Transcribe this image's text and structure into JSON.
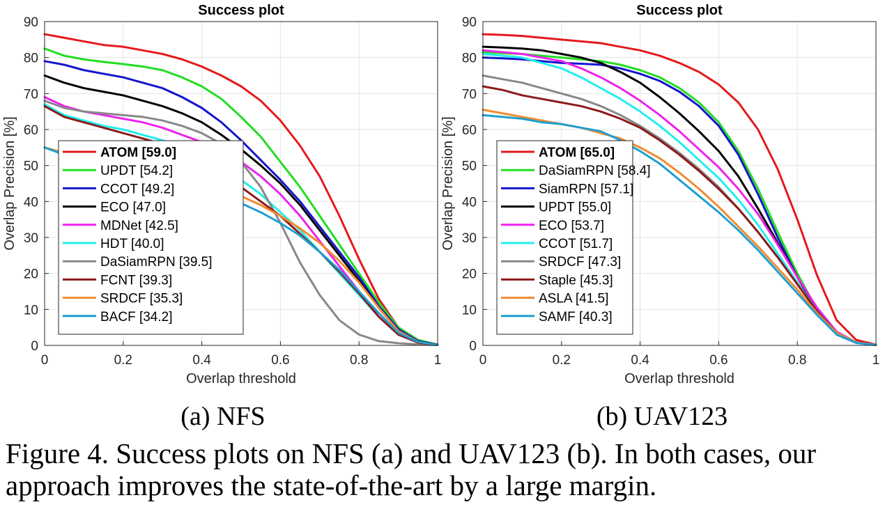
{
  "chart_data": [
    {
      "type": "line",
      "title": "Success plot",
      "xlabel": "Overlap threshold",
      "ylabel": "Overlap Precision [%]",
      "xlim": [
        0,
        1
      ],
      "ylim": [
        0,
        90
      ],
      "xticks": [
        0,
        0.2,
        0.4,
        0.6,
        0.8,
        1
      ],
      "xtick_labels": [
        "0",
        "0.2",
        "0.4",
        "0.6",
        "0.8",
        "1"
      ],
      "yticks": [
        0,
        10,
        20,
        30,
        40,
        50,
        60,
        70,
        80,
        90
      ],
      "grid": true,
      "legend_placement": "lower-left",
      "x": [
        0,
        0.05,
        0.1,
        0.15,
        0.2,
        0.25,
        0.3,
        0.35,
        0.4,
        0.45,
        0.5,
        0.55,
        0.6,
        0.65,
        0.7,
        0.75,
        0.8,
        0.85,
        0.9,
        0.95,
        1
      ],
      "series": [
        {
          "name": "ATOM [59.0]",
          "bold": true,
          "color": "#e41a1c",
          "values": [
            86.5,
            85.5,
            84.5,
            83.5,
            83.0,
            82.0,
            81.0,
            79.5,
            77.5,
            75.0,
            72.0,
            68.0,
            62.5,
            55.5,
            47.0,
            36.0,
            24.0,
            13.0,
            5.0,
            1.5,
            0.2
          ]
        },
        {
          "name": "UPDT [54.2]",
          "bold": false,
          "color": "#22dd22",
          "values": [
            82.5,
            80.5,
            79.5,
            78.8,
            78.2,
            77.5,
            76.5,
            74.5,
            72.0,
            68.5,
            63.5,
            58.0,
            51.0,
            44.0,
            36.0,
            28.0,
            20.0,
            12.0,
            5.0,
            1.5,
            0.2
          ]
        },
        {
          "name": "CCOT [49.2]",
          "bold": false,
          "color": "#1515cc",
          "values": [
            79.0,
            78.0,
            76.5,
            75.5,
            74.5,
            73.0,
            71.5,
            69.0,
            66.0,
            62.0,
            57.0,
            51.5,
            46.0,
            40.0,
            33.0,
            26.0,
            19.0,
            11.0,
            4.5,
            1.2,
            0.2
          ]
        },
        {
          "name": "ECO [47.0]",
          "bold": false,
          "color": "#000000",
          "values": [
            75.0,
            73.0,
            71.5,
            70.5,
            69.5,
            68.0,
            66.5,
            64.5,
            62.0,
            58.5,
            54.5,
            50.0,
            45.0,
            39.0,
            32.0,
            25.0,
            18.0,
            10.5,
            4.0,
            1.0,
            0.2
          ]
        },
        {
          "name": "MDNet [42.5]",
          "bold": false,
          "color": "#ee22ee",
          "values": [
            69.0,
            66.5,
            65.0,
            64.0,
            63.0,
            62.0,
            60.5,
            58.5,
            56.5,
            54.0,
            51.0,
            47.0,
            42.0,
            36.0,
            29.0,
            22.0,
            15.0,
            8.0,
            3.0,
            0.8,
            0.1
          ]
        },
        {
          "name": "HDT [40.0]",
          "bold": false,
          "color": "#22eeee",
          "values": [
            67.0,
            64.0,
            62.5,
            61.0,
            60.0,
            58.5,
            57.0,
            55.0,
            52.5,
            49.5,
            46.0,
            42.0,
            37.0,
            32.0,
            26.0,
            20.0,
            14.0,
            8.0,
            3.0,
            0.8,
            0.1
          ]
        },
        {
          "name": "DaSiamRPN [39.5]",
          "bold": false,
          "color": "#888888",
          "values": [
            68.0,
            66.0,
            65.0,
            64.5,
            64.0,
            63.5,
            62.5,
            61.0,
            59.0,
            56.0,
            51.0,
            44.0,
            34.0,
            23.0,
            14.0,
            7.0,
            3.0,
            1.2,
            0.6,
            0.3,
            0.1
          ]
        },
        {
          "name": "FCNT [39.3]",
          "bold": false,
          "color": "#8b1a1a",
          "values": [
            66.5,
            63.5,
            62.0,
            60.5,
            59.0,
            57.5,
            56.0,
            54.0,
            51.5,
            48.0,
            44.0,
            40.0,
            36.0,
            31.0,
            26.0,
            20.5,
            14.5,
            8.0,
            3.0,
            0.8,
            0.1
          ]
        },
        {
          "name": "SRDCF [35.3]",
          "bold": false,
          "color": "#f28a30",
          "values": [
            55.0,
            53.5,
            52.5,
            51.5,
            50.5,
            49.5,
            48.5,
            47.0,
            45.5,
            43.5,
            41.5,
            39.0,
            36.0,
            32.5,
            28.5,
            23.5,
            17.5,
            10.5,
            4.0,
            1.0,
            0.1
          ]
        },
        {
          "name": "BACF [34.2]",
          "bold": false,
          "color": "#1f9fd0",
          "values": [
            55.0,
            53.0,
            52.0,
            51.0,
            50.0,
            48.5,
            47.0,
            45.5,
            43.5,
            41.5,
            39.5,
            37.0,
            34.0,
            30.5,
            26.0,
            21.0,
            15.0,
            9.0,
            3.5,
            1.0,
            0.1
          ]
        }
      ]
    },
    {
      "type": "line",
      "title": "Success plot",
      "xlabel": "Overlap threshold",
      "ylabel": "Overlap Precision [%]",
      "xlim": [
        0,
        1
      ],
      "ylim": [
        0,
        90
      ],
      "xticks": [
        0,
        0.2,
        0.4,
        0.6,
        0.8,
        1
      ],
      "xtick_labels": [
        "0",
        "0.2",
        "0.4",
        "0.6",
        "0.8",
        "1"
      ],
      "yticks": [
        0,
        10,
        20,
        30,
        40,
        50,
        60,
        70,
        80,
        90
      ],
      "grid": true,
      "legend_placement": "lower-left",
      "x": [
        0,
        0.05,
        0.1,
        0.15,
        0.2,
        0.25,
        0.3,
        0.35,
        0.4,
        0.45,
        0.5,
        0.55,
        0.6,
        0.65,
        0.7,
        0.75,
        0.8,
        0.85,
        0.9,
        0.95,
        1
      ],
      "series": [
        {
          "name": "ATOM [65.0]",
          "bold": true,
          "color": "#e41a1c",
          "values": [
            86.5,
            86.3,
            86.0,
            85.5,
            85.0,
            84.5,
            84.0,
            83.0,
            82.0,
            80.5,
            78.5,
            76.0,
            72.5,
            67.5,
            60.0,
            49.0,
            35.0,
            19.5,
            7.0,
            1.5,
            0.2
          ]
        },
        {
          "name": "DaSiamRPN [58.4]",
          "bold": false,
          "color": "#22dd22",
          "values": [
            81.5,
            81.2,
            81.0,
            80.5,
            80.0,
            79.5,
            79.0,
            78.0,
            76.5,
            74.5,
            71.5,
            67.5,
            62.0,
            54.0,
            43.5,
            31.5,
            20.0,
            10.0,
            3.5,
            0.8,
            0.1
          ]
        },
        {
          "name": "SiamRPN [57.1]",
          "bold": false,
          "color": "#1515cc",
          "values": [
            80.0,
            79.8,
            79.5,
            79.0,
            78.5,
            78.3,
            78.0,
            77.0,
            75.5,
            73.5,
            70.5,
            66.5,
            61.0,
            53.0,
            42.0,
            30.0,
            19.0,
            9.5,
            3.0,
            0.7,
            0.1
          ]
        },
        {
          "name": "UPDT [55.0]",
          "bold": false,
          "color": "#000000",
          "values": [
            83.0,
            82.8,
            82.5,
            82.0,
            81.0,
            80.0,
            78.5,
            76.0,
            73.0,
            69.0,
            64.5,
            59.5,
            54.0,
            47.0,
            38.0,
            28.5,
            19.0,
            10.0,
            3.5,
            0.8,
            0.1
          ]
        },
        {
          "name": "ECO [53.7]",
          "bold": false,
          "color": "#ee22ee",
          "values": [
            82.0,
            81.5,
            81.0,
            80.0,
            79.0,
            77.0,
            74.5,
            71.5,
            68.0,
            64.0,
            59.5,
            54.5,
            49.5,
            43.5,
            36.5,
            28.0,
            19.0,
            10.5,
            3.8,
            0.8,
            0.1
          ]
        },
        {
          "name": "CCOT [51.7]",
          "bold": false,
          "color": "#22eeee",
          "values": [
            81.0,
            80.5,
            80.0,
            78.5,
            77.0,
            74.5,
            71.5,
            68.5,
            65.0,
            61.0,
            56.5,
            51.5,
            46.5,
            40.5,
            33.5,
            25.5,
            17.5,
            9.5,
            3.5,
            0.8,
            0.1
          ]
        },
        {
          "name": "SRDCF [47.3]",
          "bold": false,
          "color": "#888888",
          "values": [
            75.0,
            74.0,
            73.0,
            71.5,
            70.0,
            68.5,
            66.5,
            64.0,
            61.0,
            57.5,
            53.5,
            49.0,
            44.0,
            38.0,
            31.5,
            24.5,
            17.0,
            9.5,
            3.5,
            0.8,
            0.1
          ]
        },
        {
          "name": "Staple [45.3]",
          "bold": false,
          "color": "#8b1a1a",
          "values": [
            72.0,
            71.0,
            69.5,
            68.5,
            67.5,
            66.5,
            65.0,
            63.0,
            60.5,
            57.0,
            53.0,
            48.5,
            43.5,
            38.0,
            31.5,
            24.5,
            17.0,
            9.5,
            3.5,
            0.8,
            0.1
          ]
        },
        {
          "name": "ASLA [41.5]",
          "bold": false,
          "color": "#f28a30",
          "values": [
            65.5,
            64.5,
            63.5,
            62.5,
            61.5,
            60.5,
            59.0,
            57.5,
            55.0,
            52.0,
            48.0,
            43.5,
            38.5,
            33.0,
            27.5,
            21.5,
            15.5,
            9.0,
            3.5,
            0.8,
            0.1
          ]
        },
        {
          "name": "SAMF [40.3]",
          "bold": false,
          "color": "#1f9fd0",
          "values": [
            64.0,
            63.5,
            63.0,
            62.0,
            61.5,
            60.5,
            59.5,
            57.0,
            54.0,
            50.5,
            46.0,
            41.5,
            37.0,
            32.0,
            26.5,
            20.5,
            14.5,
            8.5,
            3.0,
            0.7,
            0.1
          ]
        }
      ]
    }
  ],
  "captions": {
    "sub_a": "(a) NFS",
    "sub_b": "(b) UAV123",
    "figure": "Figure 4. Success plots on NFS (a) and UAV123 (b). In both cases, our approach improves the state-of-the-art by a large margin."
  }
}
